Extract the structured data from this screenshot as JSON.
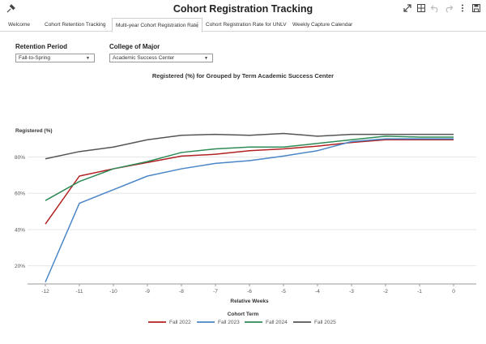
{
  "header": {
    "title": "Cohort Registration Tracking",
    "icons": [
      "pin-icon",
      "expand-icon",
      "grid-icon",
      "undo-icon",
      "redo-icon",
      "more-vert-icon",
      "save-icon"
    ]
  },
  "tabs": [
    {
      "label": "Welcome",
      "active": false
    },
    {
      "label": "Cohort Retention Tracking",
      "active": false
    },
    {
      "label": "Multi-year Cohort Registration Rate",
      "active": true
    },
    {
      "label": "Cohort Registration Rate for UNLV",
      "active": false
    },
    {
      "label": "Weekly Capture Calendar",
      "active": false
    }
  ],
  "filters": {
    "retention_period": {
      "label": "Retention Period",
      "value": "Fall-to-Spring"
    },
    "college_of_major": {
      "label": "College of Major",
      "value": "Academic Success Center"
    }
  },
  "chart_data": {
    "type": "line",
    "title": "Registered (%) for Grouped by Term Academic Success Center",
    "ylabel": "Registered (%)",
    "xlabel": "Relative Weeks",
    "x": [
      -12,
      -11,
      -10,
      -9,
      -8,
      -7,
      -6,
      -5,
      -4,
      -3,
      -2,
      -1,
      0
    ],
    "ylim": [
      10,
      95
    ],
    "yticks": [
      20,
      40,
      60,
      80
    ],
    "ytick_labels": [
      "20%",
      "40%",
      "60%",
      "80%"
    ],
    "grid": true,
    "legend_title": "Cohort Term",
    "legend_position": "bottom",
    "series": [
      {
        "name": "Fall 2022",
        "color": "#b22222",
        "values": [
          43,
          69.5,
          73.5,
          77,
          80.5,
          81.5,
          83.5,
          84.5,
          86,
          88,
          89.5,
          89.5,
          89.5
        ]
      },
      {
        "name": "Fall 2023",
        "color": "#4a86c8",
        "values": [
          11,
          54.5,
          62,
          69.5,
          73.5,
          76.5,
          78,
          80.5,
          83.5,
          88.5,
          90,
          90,
          90
        ]
      },
      {
        "name": "Fall 2024",
        "color": "#2e8b57",
        "values": [
          56,
          66.5,
          73.5,
          77.5,
          82.5,
          84.5,
          85.5,
          85.5,
          87.5,
          89.5,
          91.5,
          91,
          91
        ]
      },
      {
        "name": "Fall 2025",
        "color": "#555555",
        "values": [
          79,
          83,
          85.5,
          89.5,
          92,
          92.5,
          92,
          93,
          91.5,
          92.5,
          92.5,
          92.5,
          92.5
        ]
      }
    ]
  }
}
